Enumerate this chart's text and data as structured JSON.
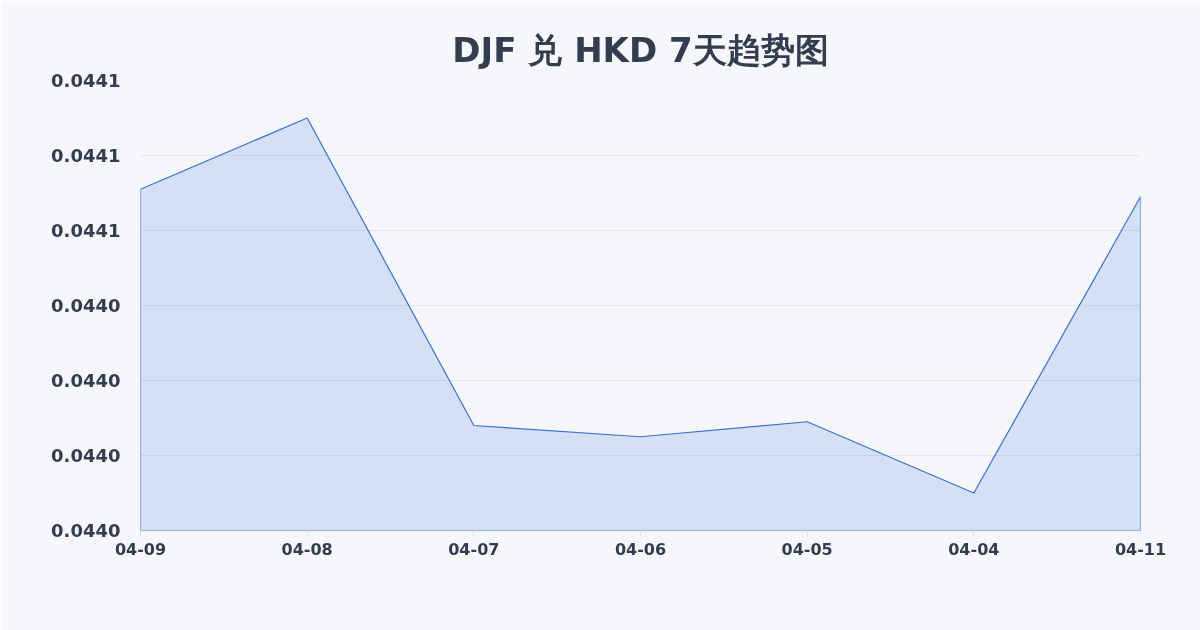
{
  "chart_data": {
    "type": "area",
    "title": "DJF 兑 HKD 7天趋势图",
    "categories": [
      "04-09",
      "04-08",
      "04-07",
      "04-06",
      "04-05",
      "04-04",
      "04-11"
    ],
    "series": [
      {
        "color": "#3a6fd8",
        "values": [
          0.044071,
          0.04409,
          0.044008,
          0.044005,
          0.044009,
          0.04399,
          0.044069
        ]
      }
    ],
    "ylim": [
      0.04398,
      0.0441
    ],
    "yticks": [
      {
        "value": 0.04398,
        "label": "0.0440"
      },
      {
        "value": 0.044,
        "label": "0.0440"
      },
      {
        "value": 0.04402,
        "label": "0.0440"
      },
      {
        "value": 0.04404,
        "label": "0.0440"
      },
      {
        "value": 0.04406,
        "label": "0.0441"
      },
      {
        "value": 0.04408,
        "label": "0.0441"
      },
      {
        "value": 0.0441,
        "label": "0.0441"
      }
    ],
    "grid": "y"
  }
}
